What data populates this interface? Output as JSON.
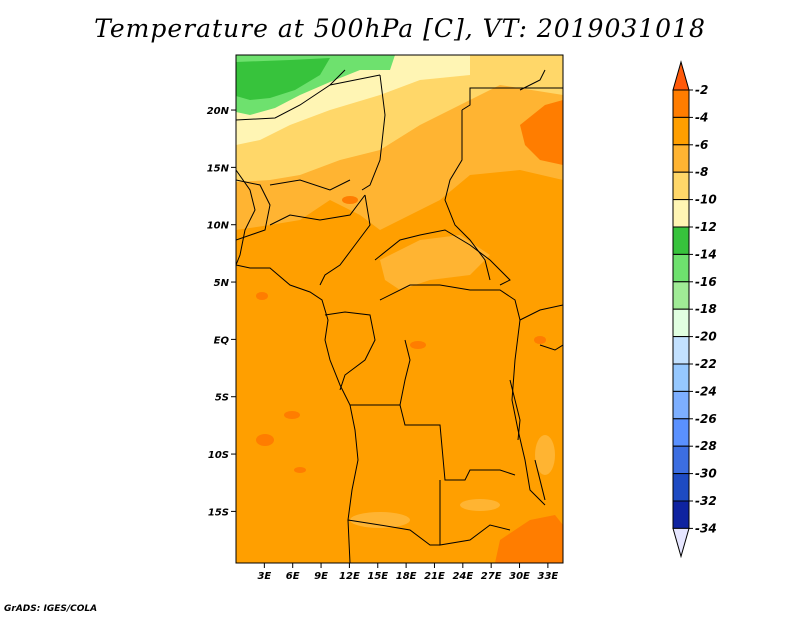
{
  "title": "Temperature at 500hPa [C], VT: 2019031018",
  "credit": "GrADS: IGES/COLA",
  "map": {
    "lat_labels": [
      "20N",
      "15N",
      "10N",
      "5N",
      "EQ",
      "5S",
      "10S",
      "15S"
    ],
    "lat_values": [
      20,
      15,
      10,
      5,
      0,
      -5,
      -10,
      -15
    ],
    "lon_labels": [
      "3E",
      "6E",
      "9E",
      "12E",
      "15E",
      "18E",
      "21E",
      "24E",
      "27E",
      "30E",
      "33E"
    ],
    "lon_values": [
      3,
      6,
      9,
      12,
      15,
      18,
      21,
      24,
      27,
      30,
      33
    ],
    "lat_range": [
      -19.5,
      24.8
    ],
    "lon_range": [
      0,
      34.6
    ]
  },
  "colorbar": {
    "labels": [
      "-2",
      "-4",
      "-6",
      "-8",
      "-10",
      "-12",
      "-14",
      "-16",
      "-18",
      "-20",
      "-22",
      "-24",
      "-26",
      "-28",
      "-30",
      "-32",
      "-34"
    ],
    "colors": [
      "#ff5a0a",
      "#ff7d00",
      "#ff9f00",
      "#ffb432",
      "#ffd769",
      "#fff5b4",
      "#37c33c",
      "#6ee16e",
      "#a0eb96",
      "#e1ffe1",
      "#c3e1ff",
      "#96c8ff",
      "#7dafff",
      "#5a91ff",
      "#3c6ee1",
      "#1e4bc3",
      "#0f23a0",
      "#0a0a6e",
      "#e6e6ff"
    ]
  },
  "colors": {
    "field_base": "#ff9f00",
    "field_warm": "#ff7d00",
    "field_cool": "#ffb432",
    "field_cooler": "#ffd769",
    "field_pale": "#fff5b4",
    "field_green": "#6ee16e",
    "field_darkgreen": "#37c33c",
    "boundary": "#000000"
  }
}
